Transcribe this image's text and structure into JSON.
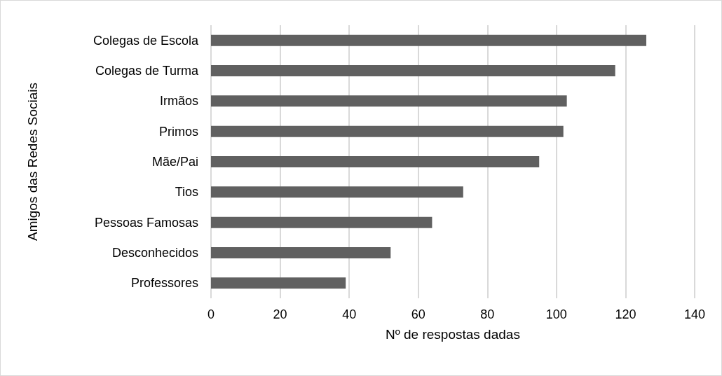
{
  "chart_data": {
    "type": "bar",
    "orientation": "horizontal",
    "xlabel": "Nº de respostas dadas",
    "ylabel": "Amigos das Redes Sociais",
    "categories": [
      "Colegas de Escola",
      "Colegas de Turma",
      "Irmãos",
      "Primos",
      "Mãe/Pai",
      "Tios",
      "Pessoas Famosas",
      "Desconhecidos",
      "Professores"
    ],
    "values": [
      126,
      117,
      103,
      102,
      95,
      73,
      64,
      52,
      39
    ],
    "color": "#606060",
    "xlim": [
      0,
      140
    ],
    "xticks": [
      0,
      20,
      40,
      60,
      80,
      100,
      120,
      140
    ],
    "grid": "x"
  }
}
